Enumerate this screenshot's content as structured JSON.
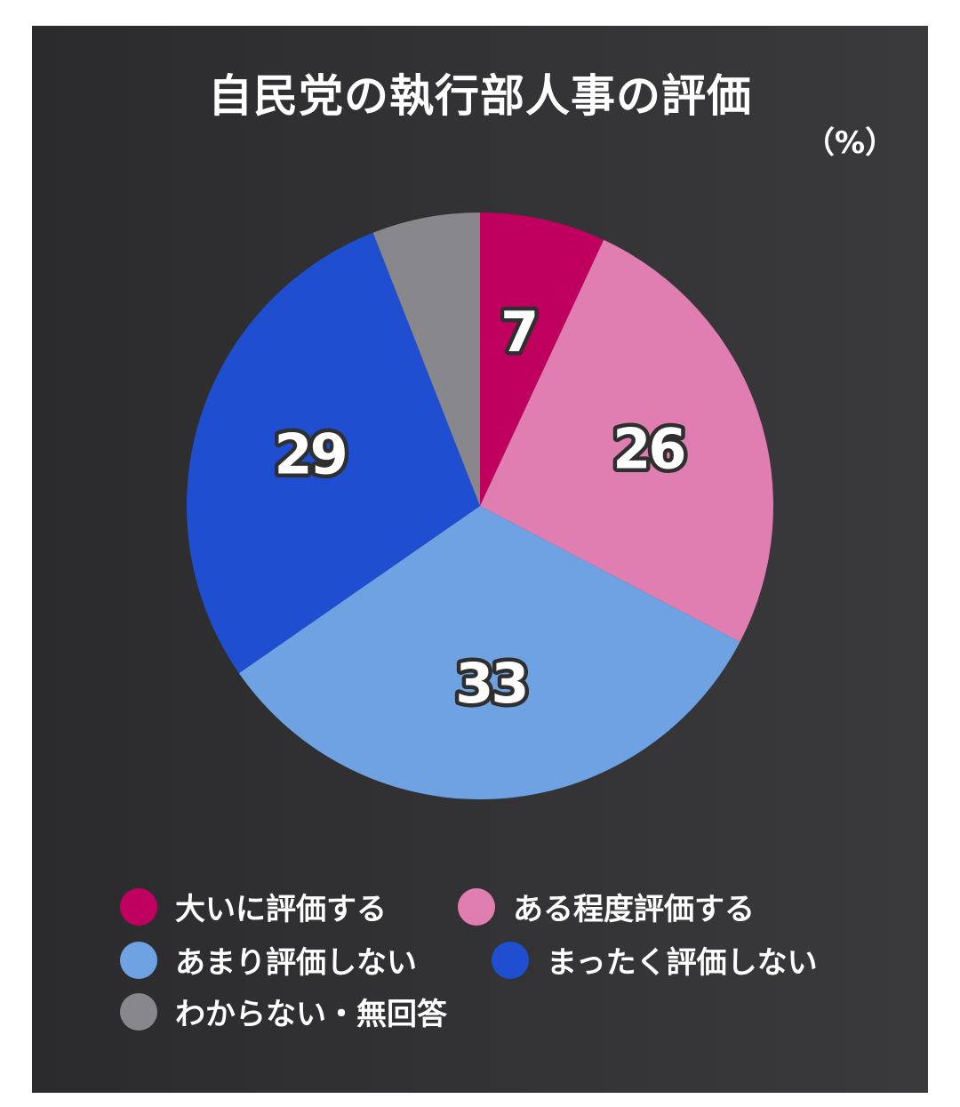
{
  "title": "自民党の執行部人事の評価",
  "unit_label": "（%）",
  "chart_data": {
    "type": "pie",
    "title": "自民党の執行部人事の評価",
    "unit": "%",
    "start_angle_deg": 0,
    "direction": "clockwise",
    "slices": [
      {
        "label": "大いに評価する",
        "value": 7,
        "color": "#c0005e",
        "show_label": true
      },
      {
        "label": "ある程度評価する",
        "value": 26,
        "color": "#e07eb2",
        "show_label": true
      },
      {
        "label": "あまり評価しない",
        "value": 33,
        "color": "#6fa2e3",
        "show_label": true
      },
      {
        "label": "まったく評価しない",
        "value": 29,
        "color": "#1f4fd0",
        "show_label": true
      },
      {
        "label": "わからない・無回答",
        "value": 6,
        "color": "#88878c",
        "show_label": false
      }
    ],
    "legend_position": "bottom"
  },
  "legend": [
    {
      "label": "大いに評価する",
      "color": "#c0005e"
    },
    {
      "label": "ある程度評価する",
      "color": "#e07eb2"
    },
    {
      "label": "あまり評価しない",
      "color": "#6fa2e3"
    },
    {
      "label": "まったく評価しない",
      "color": "#1f4fd0"
    },
    {
      "label": "わからない・無回答",
      "color": "#88878c"
    }
  ]
}
